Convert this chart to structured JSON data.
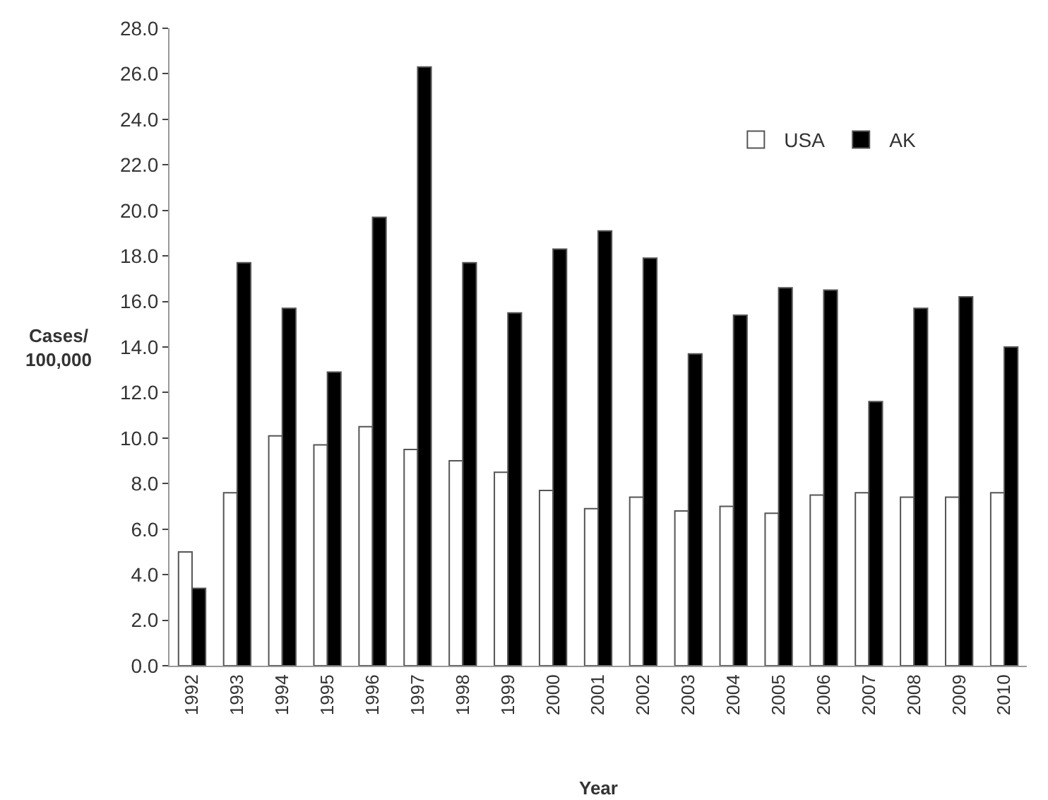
{
  "chart_data": {
    "type": "bar",
    "xlabel": "Year",
    "ylabel": "Cases/\n100,000",
    "categories": [
      "1992",
      "1993",
      "1994",
      "1995",
      "1996",
      "1997",
      "1998",
      "1999",
      "2000",
      "2001",
      "2002",
      "2003",
      "2004",
      "2005",
      "2006",
      "2007",
      "2008",
      "2009",
      "2010"
    ],
    "series": [
      {
        "name": "USA",
        "color": "#ffffff",
        "values": [
          5.0,
          7.6,
          10.1,
          9.7,
          10.5,
          9.5,
          9.0,
          8.5,
          7.7,
          6.9,
          7.4,
          6.8,
          7.0,
          6.7,
          7.5,
          7.6,
          7.4,
          7.4,
          7.6
        ]
      },
      {
        "name": "AK",
        "color": "#000000",
        "values": [
          3.4,
          17.7,
          15.7,
          12.9,
          19.7,
          26.3,
          17.7,
          15.5,
          18.3,
          19.1,
          17.9,
          13.7,
          15.4,
          16.6,
          16.5,
          11.6,
          15.7,
          16.2,
          14.0
        ]
      }
    ],
    "ylim": [
      0,
      28
    ],
    "yticks": [
      {
        "value": 0,
        "label": "0.0"
      },
      {
        "value": 2,
        "label": "2.0"
      },
      {
        "value": 4,
        "label": "4.0"
      },
      {
        "value": 6,
        "label": "6.0"
      },
      {
        "value": 8,
        "label": "8.0"
      },
      {
        "value": 10,
        "label": "10.0"
      },
      {
        "value": 12,
        "label": "12.0"
      },
      {
        "value": 14,
        "label": "14.0"
      },
      {
        "value": 16,
        "label": "16.0"
      },
      {
        "value": 18,
        "label": "18.0"
      },
      {
        "value": 20,
        "label": "20.0"
      },
      {
        "value": 22,
        "label": "22.0"
      },
      {
        "value": 24,
        "label": "24.0"
      },
      {
        "value": 26,
        "label": "26.0"
      },
      {
        "value": 28,
        "label": "28.0"
      }
    ],
    "legend": "top right",
    "grid": false
  }
}
